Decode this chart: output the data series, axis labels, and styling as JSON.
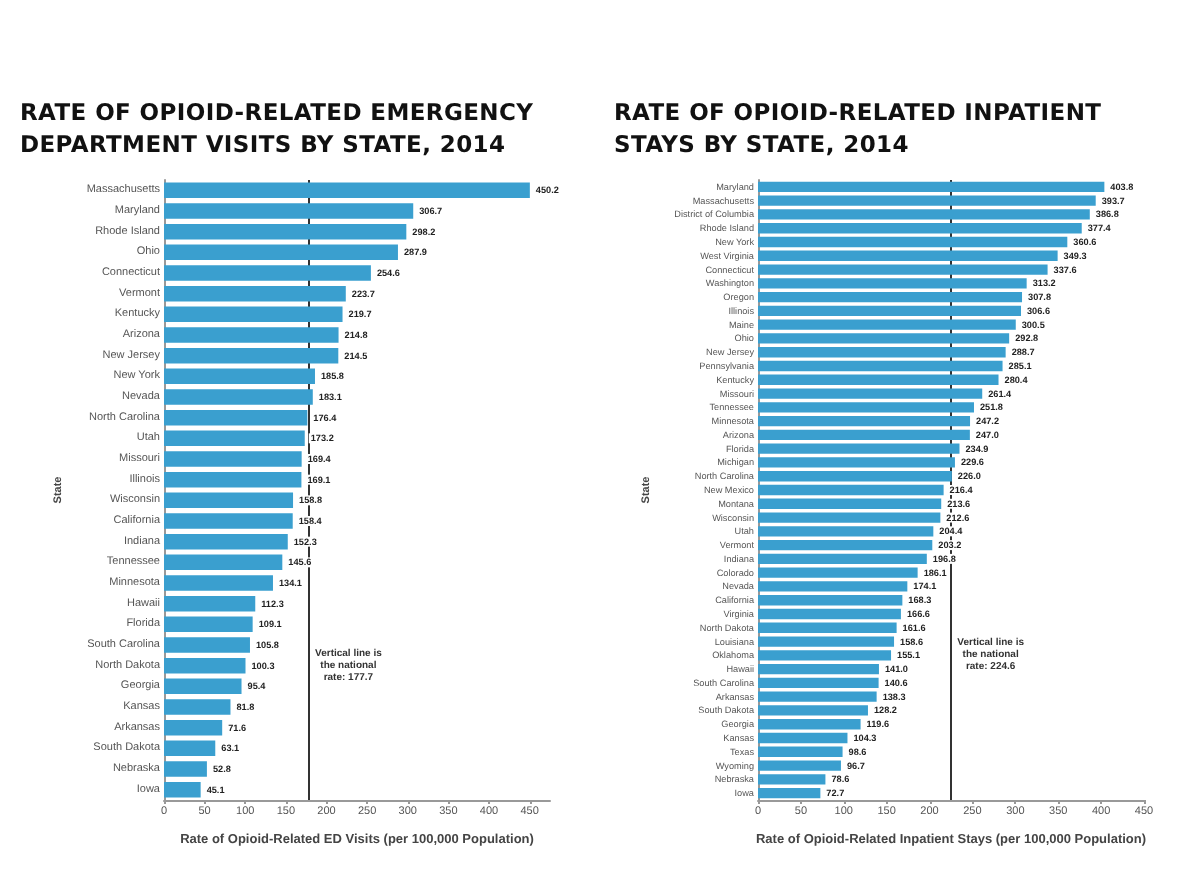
{
  "chart_data": [
    {
      "type": "bar",
      "orientation": "horizontal",
      "title": "RATE OF OPIOID-RELATED EMERGENCY DEPARTMENT VISITS BY STATE, 2014",
      "ylabel": "State",
      "xlabel": "Rate of Opioid-Related ED Visits (per 100,000 Population)",
      "categories": [
        "Massachusetts",
        "Maryland",
        "Rhode Island",
        "Ohio",
        "Connecticut",
        "Vermont",
        "Kentucky",
        "Arizona",
        "New Jersey",
        "New York",
        "Nevada",
        "North Carolina",
        "Utah",
        "Missouri",
        "Illinois",
        "Wisconsin",
        "California",
        "Indiana",
        "Tennessee",
        "Minnesota",
        "Hawaii",
        "Florida",
        "South Carolina",
        "North Dakota",
        "Georgia",
        "Kansas",
        "Arkansas",
        "South Dakota",
        "Nebraska",
        "Iowa"
      ],
      "values": [
        450.2,
        306.7,
        298.2,
        287.9,
        254.6,
        223.7,
        219.7,
        214.8,
        214.5,
        185.8,
        183.1,
        176.4,
        173.2,
        169.4,
        169.1,
        158.8,
        158.4,
        152.3,
        145.6,
        134.1,
        112.3,
        109.1,
        105.8,
        100.3,
        95.4,
        81.8,
        71.6,
        63.1,
        52.8,
        45.1
      ],
      "value_labels": [
        "450.2",
        "306.7",
        "298.2",
        "287.9",
        "254.6",
        "223.7",
        "219.7",
        "214.8",
        "214.5",
        "185.8",
        "183.1",
        "176.4",
        "173.2",
        "169.4",
        "169.1",
        "158.8",
        "158.4",
        "152.3",
        "145.6",
        "134.1",
        "112.3",
        "109.1",
        "105.8",
        "100.3",
        "95.4",
        "81.8",
        "71.6",
        "63.1",
        "52.8",
        "45.1"
      ],
      "color": "#3a9fcf",
      "xlim": [
        0,
        475
      ],
      "xticks": [
        0,
        50,
        100,
        150,
        200,
        250,
        300,
        350,
        400,
        450
      ],
      "grid": false,
      "ref_lines": [
        {
          "axis": "x",
          "value": 177.7,
          "label": "Vertical line is the national rate: 177.7",
          "color": "#333333"
        }
      ]
    },
    {
      "type": "bar",
      "orientation": "horizontal",
      "title": "RATE OF OPIOID-RELATED INPATIENT STAYS BY STATE, 2014",
      "ylabel": "State",
      "xlabel": "Rate of Opioid-Related Inpatient Stays (per 100,000 Population)",
      "categories": [
        "Maryland",
        "Massachusetts",
        "District of Columbia",
        "Rhode Island",
        "New York",
        "West Virginia",
        "Connecticut",
        "Washington",
        "Oregon",
        "Illinois",
        "Maine",
        "Ohio",
        "New Jersey",
        "Pennsylvania",
        "Kentucky",
        "Missouri",
        "Tennessee",
        "Minnesota",
        "Arizona",
        "Florida",
        "Michigan",
        "North Carolina",
        "New Mexico",
        "Montana",
        "Wisconsin",
        "Utah",
        "Vermont",
        "Indiana",
        "Colorado",
        "Nevada",
        "California",
        "Virginia",
        "North Dakota",
        "Louisiana",
        "Oklahoma",
        "Hawaii",
        "South Carolina",
        "Arkansas",
        "South Dakota",
        "Georgia",
        "Kansas",
        "Texas",
        "Wyoming",
        "Nebraska",
        "Iowa"
      ],
      "values": [
        403.8,
        393.7,
        386.8,
        377.4,
        360.6,
        349.3,
        337.6,
        313.2,
        307.8,
        306.6,
        300.5,
        292.8,
        288.7,
        285.1,
        280.4,
        261.4,
        251.8,
        247.2,
        247.0,
        234.9,
        229.6,
        226.0,
        216.4,
        213.6,
        212.6,
        204.4,
        203.2,
        196.8,
        186.1,
        174.1,
        168.3,
        166.6,
        161.6,
        158.6,
        155.1,
        141.0,
        140.6,
        138.3,
        128.2,
        119.6,
        104.3,
        98.6,
        96.7,
        78.6,
        72.7
      ],
      "value_labels": [
        "403.8",
        "393.7",
        "386.8",
        "377.4",
        "360.6",
        "349.3",
        "337.6",
        "313.2",
        "307.8",
        "306.6",
        "300.5",
        "292.8",
        "288.7",
        "285.1",
        "280.4",
        "261.4",
        "251.8",
        "247.2",
        "247.0",
        "234.9",
        "229.6",
        "226.0",
        "216.4",
        "213.6",
        "212.6",
        "204.4",
        "203.2",
        "196.8",
        "186.1",
        "174.1",
        "168.3",
        "166.6",
        "161.6",
        "158.6",
        "155.1",
        "141.0",
        "140.6",
        "138.3",
        "128.2",
        "119.6",
        "104.3",
        "98.6",
        "96.7",
        "78.6",
        "72.7"
      ],
      "color": "#3a9fcf",
      "xlim": [
        0,
        450
      ],
      "xticks": [
        0,
        50,
        100,
        150,
        200,
        250,
        300,
        350,
        400,
        450
      ],
      "grid": false,
      "ref_lines": [
        {
          "axis": "x",
          "value": 224.6,
          "label": "Vertical line is the national rate: 224.6",
          "color": "#333333"
        }
      ]
    }
  ]
}
